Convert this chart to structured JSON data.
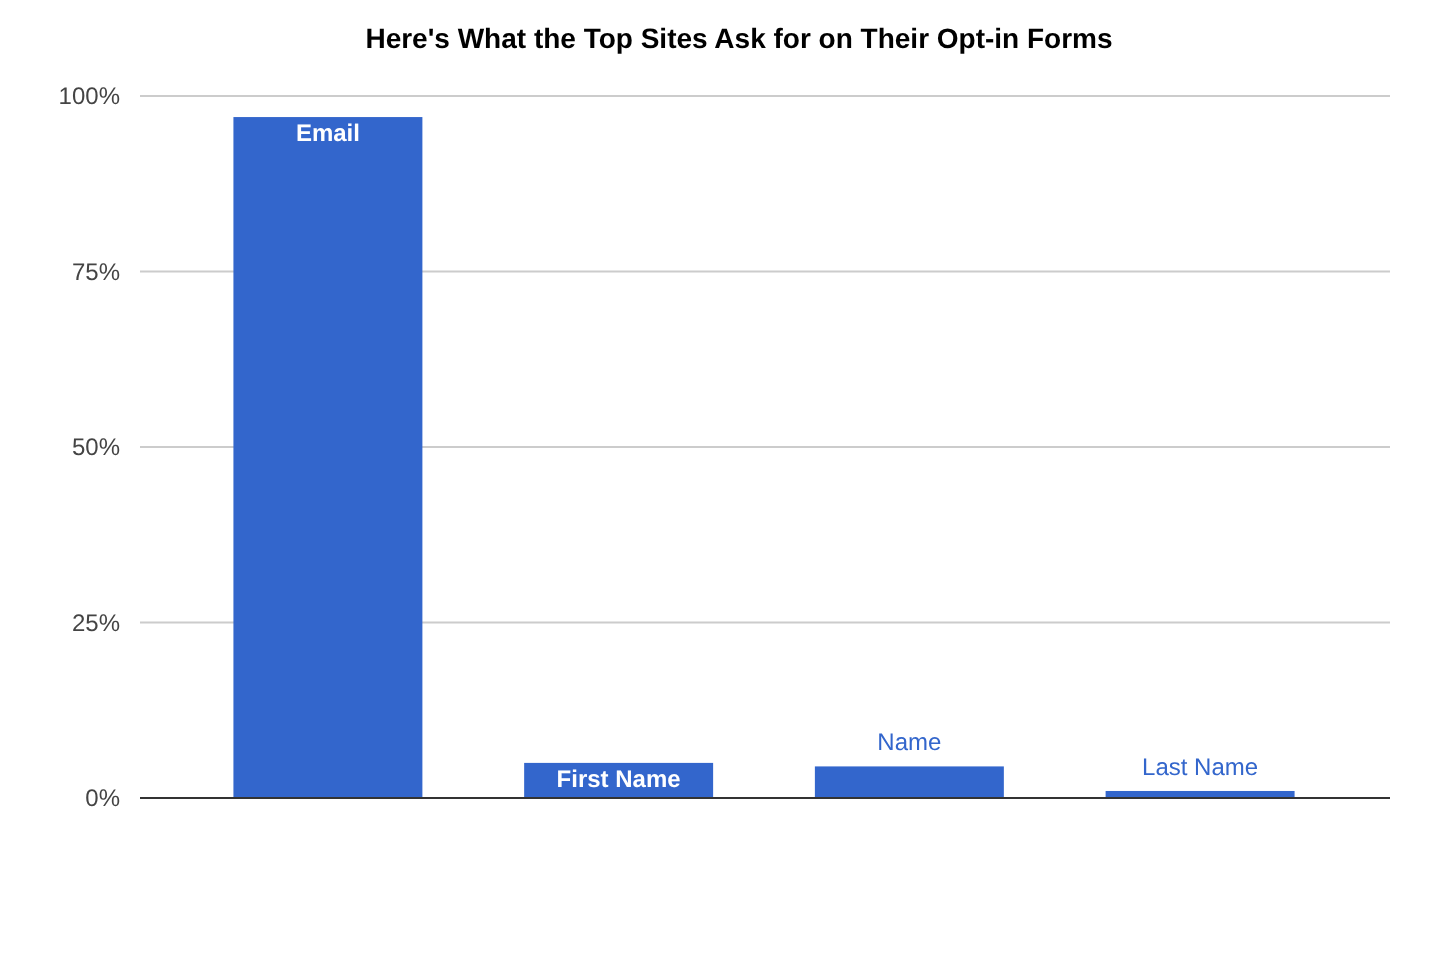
{
  "chart_data": {
    "type": "bar",
    "title": "Here's What the Top Sites Ask for on Their Opt-in Forms",
    "categories": [
      "Email",
      "First Name",
      "Name",
      "Last Name"
    ],
    "values": [
      97,
      5,
      4.5,
      1
    ],
    "color": "#3366cc",
    "ylim": [
      0,
      100
    ],
    "yticks": [
      {
        "value": 0,
        "label": "0%"
      },
      {
        "value": 25,
        "label": "25%"
      },
      {
        "value": 50,
        "label": "50%"
      },
      {
        "value": 75,
        "label": "75%"
      },
      {
        "value": 100,
        "label": "100%"
      }
    ],
    "grid": "y"
  }
}
